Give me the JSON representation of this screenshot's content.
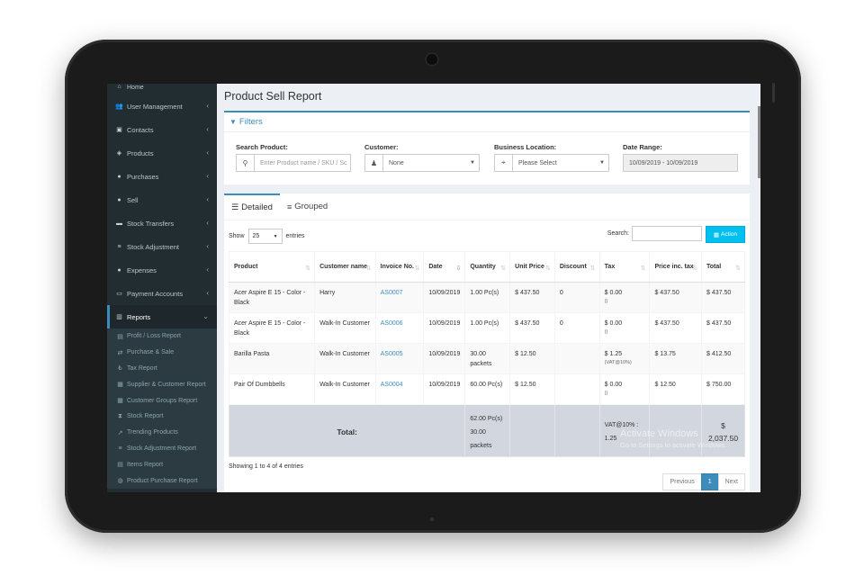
{
  "sidebar": {
    "top_partial": "Home",
    "items": [
      {
        "label": "User Management",
        "icon": "users-icon",
        "glyph": "👥"
      },
      {
        "label": "Contacts",
        "icon": "address-book-icon",
        "glyph": "▣"
      },
      {
        "label": "Products",
        "icon": "cubes-icon",
        "glyph": "◈"
      },
      {
        "label": "Purchases",
        "icon": "circle-arrow-icon",
        "glyph": "●"
      },
      {
        "label": "Sell",
        "icon": "plus-circle-icon",
        "glyph": "●"
      },
      {
        "label": "Stock Transfers",
        "icon": "truck-icon",
        "glyph": "▬"
      },
      {
        "label": "Stock Adjustment",
        "icon": "database-icon",
        "glyph": "≡"
      },
      {
        "label": "Expenses",
        "icon": "minus-circle-icon",
        "glyph": "●"
      },
      {
        "label": "Payment Accounts",
        "icon": "money-icon",
        "glyph": "▭"
      },
      {
        "label": "Reports",
        "icon": "bar-chart-icon",
        "glyph": "▥"
      }
    ],
    "reports_sub": [
      {
        "label": "Profit / Loss Report",
        "glyph": "▤"
      },
      {
        "label": "Purchase & Sale",
        "glyph": "⇄"
      },
      {
        "label": "Tax Report",
        "glyph": "₺"
      },
      {
        "label": "Supplier & Customer Report",
        "glyph": "▦"
      },
      {
        "label": "Customer Groups Report",
        "glyph": "▦"
      },
      {
        "label": "Stock Report",
        "glyph": "⧗"
      },
      {
        "label": "Trending Products",
        "glyph": "↗"
      },
      {
        "label": "Stock Adjustment Report",
        "glyph": "≡"
      },
      {
        "label": "Items Report",
        "glyph": "▤"
      },
      {
        "label": "Product Purchase Report",
        "glyph": "◍"
      }
    ]
  },
  "page": {
    "title": "Product Sell Report"
  },
  "filters": {
    "heading": "Filters",
    "search_product_label": "Search Product:",
    "search_product_placeholder": "Enter Product name / SKU / Sc",
    "customer_label": "Customer:",
    "customer_value": "None",
    "location_label": "Business Location:",
    "location_value": "Please Select",
    "date_label": "Date Range:",
    "date_value": "10/09/2019 - 10/09/2019"
  },
  "tabs": {
    "detailed": "Detailed",
    "grouped": "Grouped"
  },
  "controls": {
    "show": "Show",
    "entries_value": "25",
    "entries": "entries",
    "search": "Search:",
    "action": "Action"
  },
  "table": {
    "headers": [
      "Product",
      "Customer name",
      "Invoice No.",
      "Date",
      "Quantity",
      "Unit Price",
      "Discount",
      "Tax",
      "Price inc. tax",
      "Total"
    ],
    "rows": [
      {
        "product": "Acer Aspire E 15 - Color - Black",
        "customer": "Harry",
        "invoice": "AS0007",
        "date": "10/09/2019",
        "qty": "1.00 Pc(s)",
        "unit_price": "$ 437.50",
        "discount": "0",
        "tax": "$ 0.00",
        "tax_note": "()",
        "price_inc": "$ 437.50",
        "total": "$ 437.50"
      },
      {
        "product": "Acer Aspire E 15 - Color - Black",
        "customer": "Walk-In Customer",
        "invoice": "AS0006",
        "date": "10/09/2019",
        "qty": "1.00 Pc(s)",
        "unit_price": "$ 437.50",
        "discount": "0",
        "tax": "$ 0.00",
        "tax_note": "()",
        "price_inc": "$ 437.50",
        "total": "$ 437.50"
      },
      {
        "product": "Barilla Pasta",
        "customer": "Walk-In Customer",
        "invoice": "AS0005",
        "date": "10/09/2019",
        "qty": "30.00 packets",
        "unit_price": "$ 12.50",
        "discount": "",
        "tax": "$ 1.25",
        "tax_note": "(VAT@10%)",
        "price_inc": "$ 13.75",
        "total": "$ 412.50"
      },
      {
        "product": "Pair Of Dumbbells",
        "customer": "Walk-In Customer",
        "invoice": "AS0004",
        "date": "10/09/2019",
        "qty": "60.00 Pc(s)",
        "unit_price": "$ 12.50",
        "discount": "",
        "tax": "$ 0.00",
        "tax_note": "()",
        "price_inc": "$ 12.50",
        "total": "$ 750.00"
      }
    ],
    "footer": {
      "label": "Total:",
      "qty_line1": "62.00 Pc(s)",
      "qty_line2": "30.00",
      "qty_line3": "packets",
      "tax_line1": "VAT@10% :",
      "tax_line2": "1.25",
      "grand_line1": "$",
      "grand_line2": "2,037.50"
    }
  },
  "showing": "Showing 1 to 4 of 4 entries",
  "pager": {
    "prev": "Previous",
    "current": "1",
    "next": "Next"
  },
  "watermark": {
    "line1": "Activate Windows",
    "line2": "Go to Settings to activate Windows."
  },
  "colors": {
    "accent": "#3c8dbc",
    "sidebar": "#222d32",
    "action": "#00c0ef"
  }
}
